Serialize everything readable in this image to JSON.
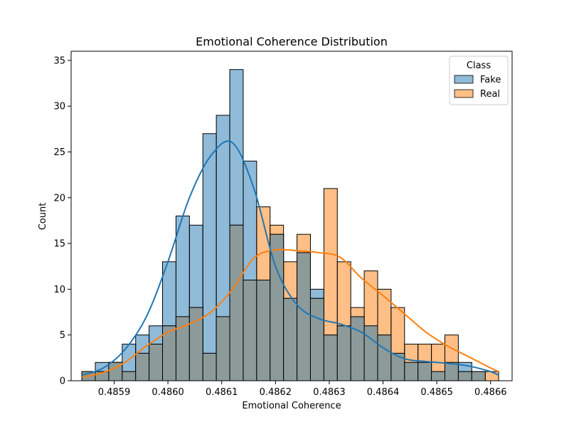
{
  "chart_data": {
    "type": "histogram",
    "title": "Emotional Coherence Distribution",
    "xlabel": "Emotional Coherence",
    "ylabel": "Count",
    "xlim": [
      0.48582,
      0.48664
    ],
    "ylim": [
      0,
      36
    ],
    "x_ticks": [
      0.4859,
      0.486,
      0.4861,
      0.4862,
      0.4863,
      0.4864,
      0.4865,
      0.4866
    ],
    "x_tick_labels": [
      "0.4859",
      "0.4860",
      "0.4861",
      "0.4862",
      "0.4863",
      "0.4864",
      "0.4865",
      "0.4866"
    ],
    "y_ticks": [
      0,
      5,
      10,
      15,
      20,
      25,
      30,
      35
    ],
    "y_tick_labels": [
      "0",
      "5",
      "10",
      "15",
      "20",
      "25",
      "30",
      "35"
    ],
    "bin_edges": [
      0.48584,
      0.485865,
      0.48589,
      0.485915,
      0.48594,
      0.485965,
      0.48599,
      0.486015,
      0.48604,
      0.486065,
      0.48609,
      0.486115,
      0.48614,
      0.486165,
      0.48619,
      0.486215,
      0.48624,
      0.486265,
      0.48629,
      0.486315,
      0.48634,
      0.486365,
      0.48639,
      0.486415,
      0.48644,
      0.486465,
      0.48649,
      0.486515,
      0.48654,
      0.486565,
      0.48659,
      0.486615
    ],
    "legend": {
      "title": "Class",
      "position": "upper right"
    },
    "series": [
      {
        "name": "Fake",
        "color": "#1f77b4",
        "counts": [
          1,
          2,
          2,
          4,
          5,
          6,
          13,
          18,
          17,
          27,
          29,
          34,
          24,
          11,
          16,
          9,
          14,
          10,
          5,
          6,
          7,
          6,
          5,
          3,
          2,
          2,
          1,
          2,
          2,
          1,
          0
        ],
        "kde_x": [
          0.48584,
          0.48588,
          0.48592,
          0.48596,
          0.486,
          0.48604,
          0.48608,
          0.48612,
          0.48616,
          0.4862,
          0.48624,
          0.48628,
          0.48632,
          0.48636,
          0.4864,
          0.48644,
          0.48648,
          0.48652,
          0.48656,
          0.4866,
          0.486615
        ],
        "kde_y": [
          0.6,
          1.4,
          3.4,
          7.0,
          13.0,
          20.0,
          24.6,
          26.0,
          21.0,
          12.5,
          8.3,
          6.8,
          6.2,
          5.3,
          3.6,
          2.4,
          2.1,
          1.9,
          1.6,
          1.0,
          0.6
        ]
      },
      {
        "name": "Real",
        "color": "#ff7f0e",
        "counts": [
          1,
          1,
          2,
          1,
          3,
          4,
          6,
          7,
          8,
          3,
          7,
          17,
          11,
          19,
          17,
          13,
          16,
          9,
          21,
          13,
          8,
          12,
          10,
          8,
          4,
          4,
          4,
          5,
          1,
          1,
          1
        ],
        "kde_x": [
          0.48584,
          0.48588,
          0.48592,
          0.48596,
          0.486,
          0.48604,
          0.48608,
          0.48612,
          0.48616,
          0.4862,
          0.48624,
          0.48628,
          0.48632,
          0.48636,
          0.4864,
          0.48644,
          0.48648,
          0.48652,
          0.48656,
          0.4866,
          0.486615
        ],
        "kde_y": [
          0.4,
          0.9,
          2.0,
          3.8,
          5.3,
          6.2,
          7.5,
          10.0,
          13.4,
          14.3,
          14.2,
          14.0,
          13.5,
          11.2,
          9.3,
          7.3,
          5.3,
          3.8,
          2.6,
          1.4,
          1.0
        ]
      }
    ],
    "overlap_color": "#8c9a9a"
  }
}
